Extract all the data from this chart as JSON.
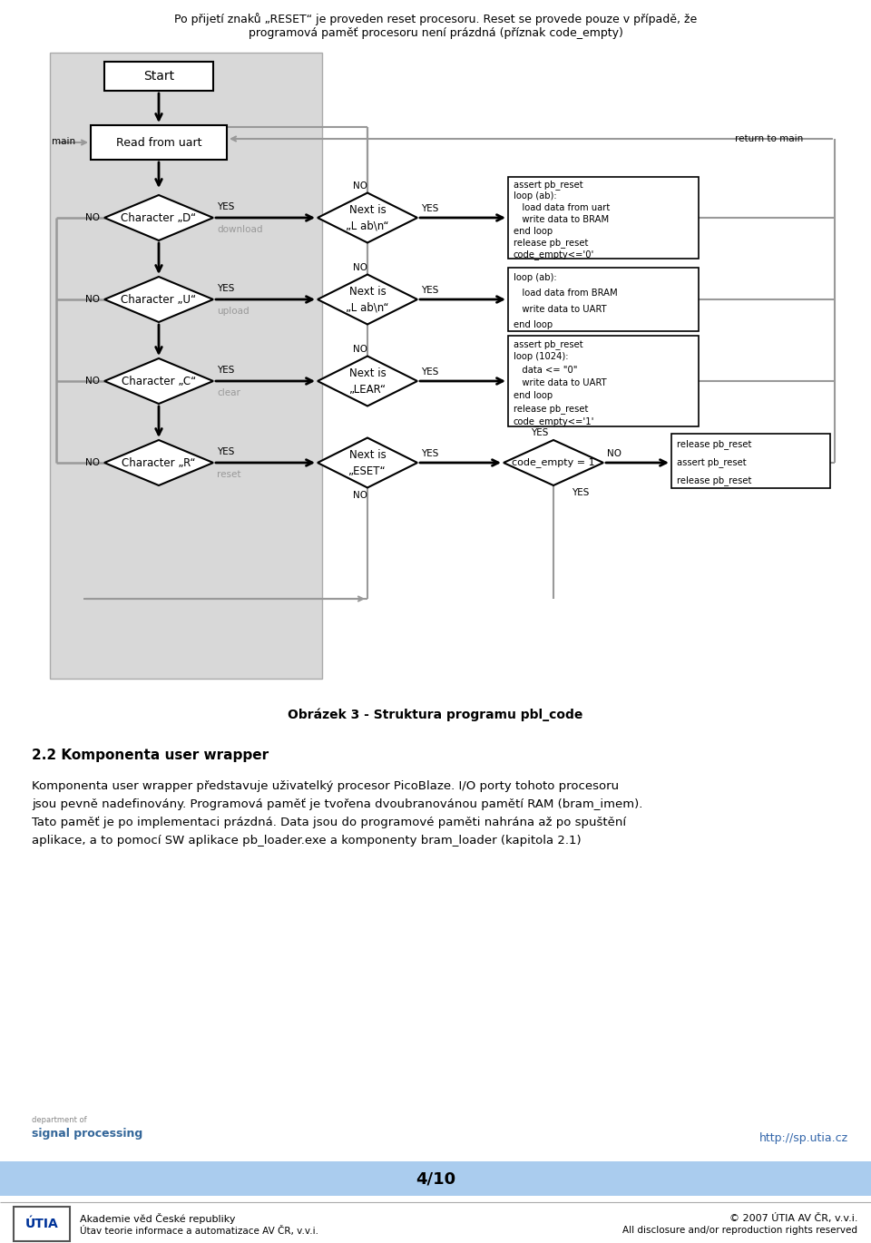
{
  "page_title_line1": "Po přijetí znaků „RESET“ je proveden reset procesoru. Reset se provede pouze v případě, že",
  "page_title_line2": "programová paměť procesoru není prázdná (příznak code_empty)",
  "fig_caption": "Obrázek 3 - Struktura programu pbl_code",
  "section_title": "2.2 Komponenta user wrapper",
  "sec_line1": "Komponenta user wrapper představuje uživatelký procesor PicoBlaze. I/O porty tohoto procesoru",
  "sec_line2": "jsou pevně nadefinovány. Programová paměť je tvořena dvoubranovánou pamětí RAM (bram_imem).",
  "sec_line3": "Tato paměť je po implementaci prázdná. Data jsou do programové paměti nahrána až po spuštění",
  "sec_line4": "aplikace, a to pomocí SW aplikace pb_loader.exe a komponenty bram_loader (kapitola 2.1)",
  "footer_left1": "Akademie věd České republiky",
  "footer_left2": "Útav teorie informace a automatizace AV ČR, v.v.i.",
  "footer_right1": "© 2007 ÚTIA AV ČR, v.v.i.",
  "footer_right2": "All disclosure and/or reproduction rights reserved",
  "footer_url": "http://sp.utia.cz",
  "footer_page": "4/10",
  "bg_color": "#ffffff",
  "flowchart_bg": "#d8d8d8",
  "box_fill": "#ffffff",
  "arrow_color": "#000000",
  "gray_color": "#999999",
  "footer_bar_color": "#aaccee"
}
